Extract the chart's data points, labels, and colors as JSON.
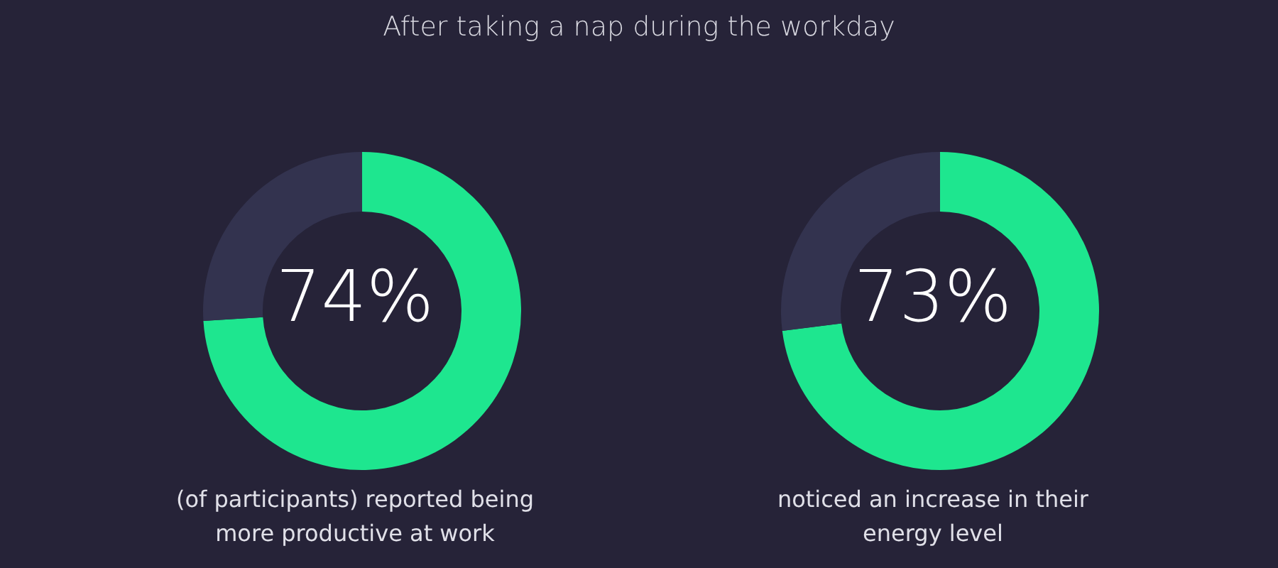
{
  "chart_data": [
    {
      "type": "donut",
      "title": "After taking a nap during the workday",
      "categories": [
        null,
        null
      ],
      "values": [
        74,
        26
      ],
      "colors": [
        "#1ee68f",
        "#33334f"
      ],
      "annotations": [
        "74%",
        "(of participants) reported being more productive at work"
      ]
    },
    {
      "type": "donut",
      "categories": [
        null,
        null
      ],
      "values": [
        73,
        27
      ],
      "colors": [
        "#1ee68f",
        "#33334f"
      ],
      "annotations": [
        "73%",
        "noticed an increase in their energy level"
      ]
    }
  ]
}
